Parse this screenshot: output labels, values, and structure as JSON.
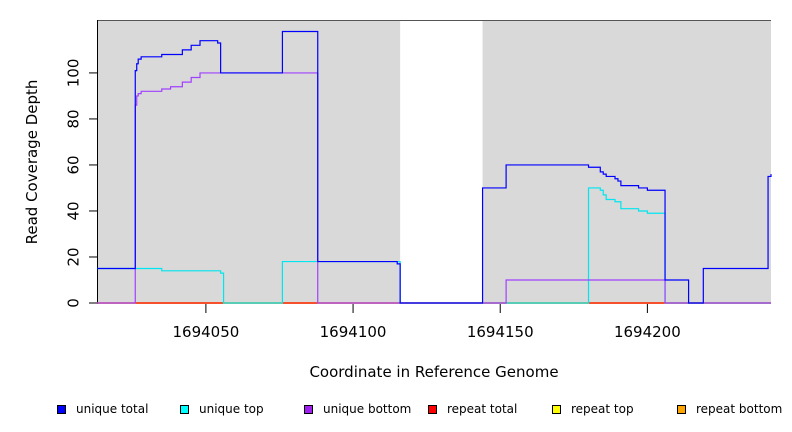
{
  "chart_data": {
    "type": "line",
    "title": "",
    "xlabel": "Coordinate in Reference Genome",
    "ylabel": "Read Coverage Depth",
    "xlim": [
      1694013,
      1694242
    ],
    "ylim": [
      0,
      123
    ],
    "x_ticks": [
      1694050,
      1694100,
      1694150,
      1694200
    ],
    "y_ticks": [
      0,
      20,
      40,
      60,
      80,
      100
    ],
    "grid": false,
    "legend_position": "bottom",
    "background_color": "#d9d9d9",
    "gap_region": [
      1694116,
      1694144
    ],
    "series": [
      {
        "name": "unique total",
        "color": "#0000ff",
        "x": [
          1694013,
          1694026,
          1694026.5,
          1694027,
          1694028,
          1694035,
          1694042,
          1694045,
          1694048,
          1694054,
          1694055,
          1694076,
          1694088,
          1694115,
          1694116,
          1694116.5,
          1694144,
          1694152,
          1694180,
          1694184,
          1694185,
          1694186,
          1694189,
          1694190,
          1694191,
          1694197,
          1694200,
          1694206,
          1694214,
          1694219,
          1694241,
          1694242
        ],
        "y": [
          15,
          101,
          104,
          106,
          107,
          108,
          110,
          112,
          114,
          113,
          100,
          118,
          18,
          17,
          0,
          0,
          50,
          60,
          59,
          57,
          56,
          55,
          54,
          53,
          51,
          50,
          49,
          10,
          0,
          15,
          55,
          56
        ]
      },
      {
        "name": "unique top",
        "color": "#00e5ee",
        "x": [
          1694013,
          1694026,
          1694035,
          1694055,
          1694056,
          1694076,
          1694088,
          1694116,
          1694144,
          1694180,
          1694184,
          1694185,
          1694186,
          1694189,
          1694191,
          1694197,
          1694200,
          1694206,
          1694242
        ],
        "y": [
          15,
          15,
          14,
          13,
          0,
          18,
          18,
          0,
          0,
          50,
          49,
          47,
          45,
          44,
          41,
          40,
          39,
          0,
          0
        ]
      },
      {
        "name": "unique bottom",
        "color": "#a040ff",
        "x": [
          1694013,
          1694026,
          1694026.5,
          1694027,
          1694028,
          1694035,
          1694038,
          1694042,
          1694045,
          1694048,
          1694088,
          1694152,
          1694206,
          1694242
        ],
        "y": [
          0,
          86,
          90,
          91,
          92,
          93,
          94,
          96,
          98,
          100,
          0,
          10,
          0,
          0
        ]
      },
      {
        "name": "repeat total",
        "color": "#ff0000",
        "x": [
          1694013,
          1694242
        ],
        "y": [
          0,
          0
        ]
      },
      {
        "name": "repeat top",
        "color": "#ffff00",
        "x": [
          1694013,
          1694242
        ],
        "y": [
          0,
          0
        ]
      },
      {
        "name": "repeat bottom",
        "color": "#ffa500",
        "x": [
          1694013,
          1694116,
          1694144,
          1694206,
          1694242
        ],
        "y": [
          0,
          0,
          0,
          0,
          0
        ]
      }
    ],
    "legend": [
      {
        "label": "unique total",
        "color": "#0000ff"
      },
      {
        "label": "unique top",
        "color": "#00ffff"
      },
      {
        "label": "unique bottom",
        "color": "#a020f0"
      },
      {
        "label": "repeat total",
        "color": "#ff0000"
      },
      {
        "label": "repeat top",
        "color": "#ffff00"
      },
      {
        "label": "repeat bottom",
        "color": "#ffa500"
      }
    ]
  }
}
